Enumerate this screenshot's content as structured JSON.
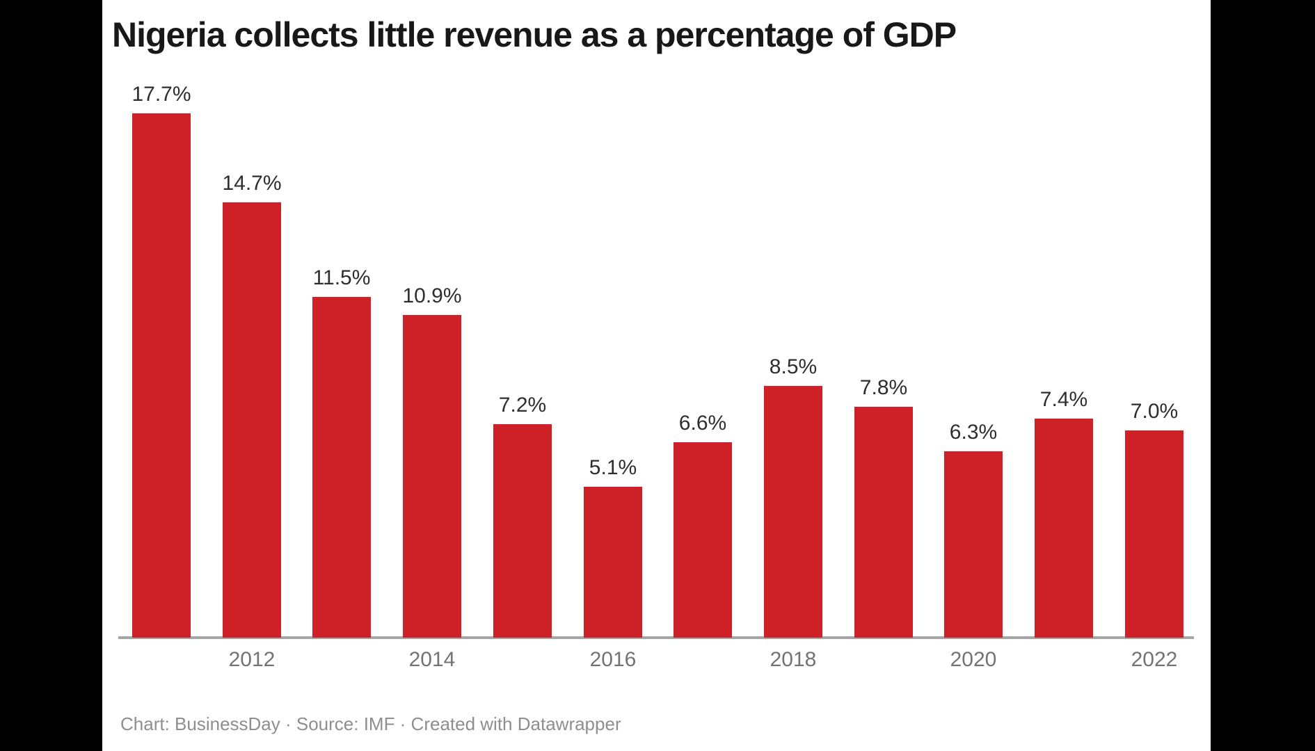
{
  "title": "Nigeria collects little revenue as a percentage of GDP",
  "footer": "Chart: BusinessDay · Source: IMF · Created with Datawrapper",
  "colors": {
    "bar_red": "#ce2127",
    "letterbox_black": "#000000",
    "card_white": "#ffffff",
    "axis_gray": "#a6a6a6",
    "tick_gray": "#737373",
    "footer_gray": "#8e8e8e",
    "title_black": "#181818",
    "value_label_gray": "#2e2e2e"
  },
  "chart_data": {
    "type": "bar",
    "title": "Nigeria collects little revenue as a percentage of GDP",
    "values": [
      17.7,
      14.7,
      11.5,
      10.9,
      7.2,
      5.1,
      6.6,
      8.5,
      7.8,
      6.3,
      7.4,
      7.0
    ],
    "bar_labels": [
      "17.7%",
      "14.7%",
      "11.5%",
      "10.9%",
      "7.2%",
      "5.1%",
      "6.6%",
      "8.5%",
      "7.8%",
      "6.3%",
      "7.4%",
      "7.0%"
    ],
    "x_tick_labels": [
      "2012",
      "2014",
      "2016",
      "2018",
      "2020",
      "2022"
    ],
    "x_tick_bar_indexes": [
      1,
      3,
      5,
      7,
      9,
      11
    ],
    "xlabel": "",
    "ylabel": "",
    "ylim": [
      0,
      18
    ],
    "grid": false,
    "legend": "none",
    "y_axis_visible": false,
    "value_labels_visible": true,
    "bar_color": "#ce2127"
  }
}
